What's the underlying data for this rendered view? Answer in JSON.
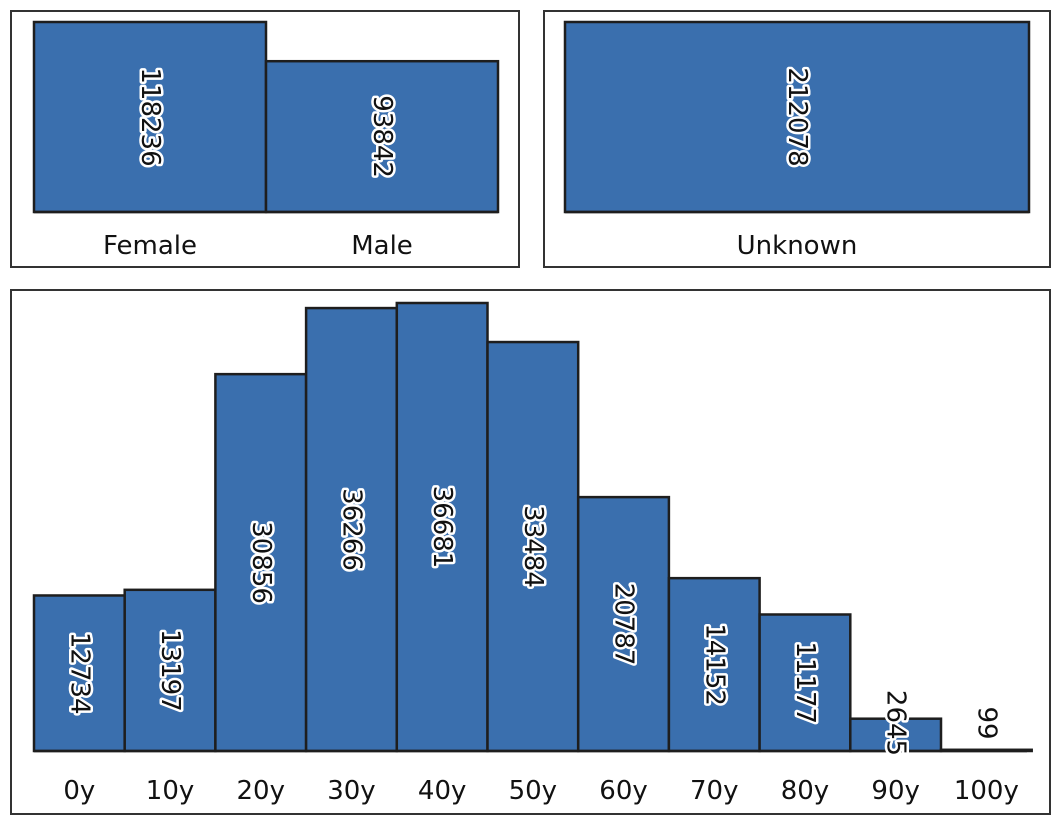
{
  "chart_data": [
    {
      "type": "bar",
      "categories": [
        "Female",
        "Male"
      ],
      "values": [
        118236,
        93842
      ],
      "ylim": [
        0,
        118236
      ]
    },
    {
      "type": "bar",
      "categories": [
        "Unknown"
      ],
      "values": [
        212078
      ],
      "ylim": [
        0,
        212078
      ]
    },
    {
      "type": "bar",
      "categories": [
        "0y",
        "10y",
        "20y",
        "30y",
        "40y",
        "50y",
        "60y",
        "70y",
        "80y",
        "90y",
        "100y"
      ],
      "values": [
        12734,
        13197,
        30856,
        36266,
        36681,
        33484,
        20787,
        14152,
        11177,
        2645,
        99
      ],
      "ylim": [
        0,
        36681
      ]
    }
  ],
  "style": {
    "bar_color": "#3a6fae",
    "outline_color": "#1e1e1e",
    "label_halo_color": "#ffffff"
  }
}
